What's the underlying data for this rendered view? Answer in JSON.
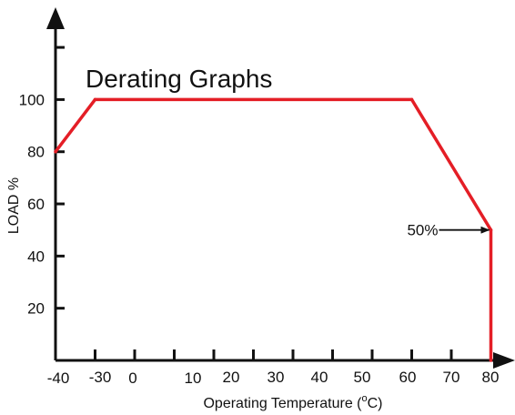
{
  "chart_data": {
    "type": "line",
    "title": "Derating Graphs",
    "xlabel": "Operating Temperature (",
    "xlabel_unit_sup": "o",
    "xlabel_unit_end": "C)",
    "ylabel": "LOAD %",
    "x_ticks": [
      -40,
      -30,
      0,
      10,
      20,
      30,
      40,
      50,
      60,
      70,
      80
    ],
    "y_ticks": [
      20,
      40,
      60,
      80,
      100
    ],
    "series": [
      {
        "points": [
          {
            "x": -40,
            "y": 80
          },
          {
            "x": -30,
            "y": 100
          },
          {
            "x": 50,
            "y": 100
          },
          {
            "x": 70,
            "y": 50
          },
          {
            "x": 70,
            "y": 0
          }
        ]
      }
    ],
    "annotation": {
      "text": "50%",
      "x": 70,
      "y": 50
    },
    "grid": false,
    "colors": {
      "series": "#e41e26",
      "axes": "#111111"
    }
  }
}
